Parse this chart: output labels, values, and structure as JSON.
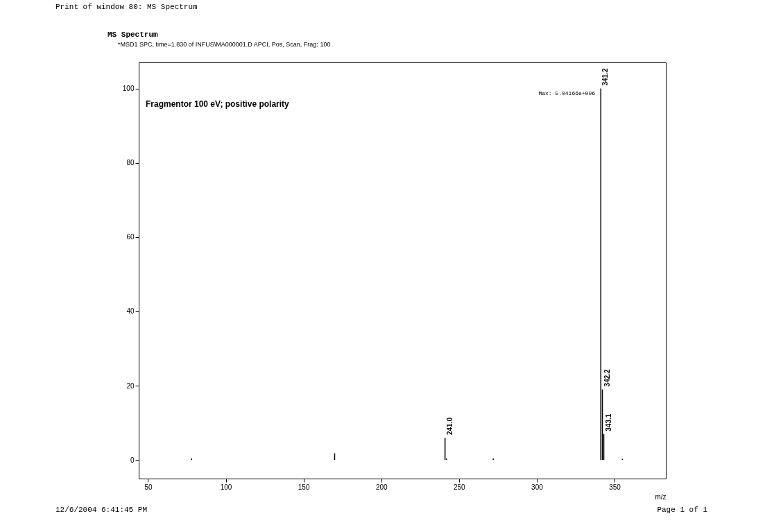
{
  "chart_data": {
    "type": "bar",
    "title": "MS Spectrum",
    "subtitle": "*MSD1 SPC, time=1.830 of INFUS\\MA000001.D   APCI, Pos, Scan, Frag: 100",
    "xlabel": "m/z",
    "x": [
      78,
      170,
      241.0,
      242,
      272,
      341.2,
      342.2,
      343.1,
      355
    ],
    "values": [
      0.4,
      1.8,
      6,
      0.4,
      0.4,
      100,
      19,
      7,
      0.3
    ],
    "color": "#000000",
    "xlim": [
      44,
      383
    ],
    "xticks": [
      50,
      100,
      150,
      200,
      250,
      300,
      350
    ],
    "ylim": [
      -5,
      107
    ],
    "yticks": [
      0,
      20,
      40,
      60,
      80,
      100
    ],
    "grid": false,
    "annotations": [
      "Print of window 80: MS Spectrum",
      "Fragmentor 100 eV; positive polarity",
      "Max: 5.04166e+006",
      "12/6/2004 6:41:45 PM",
      "Page 1 of 1",
      {
        "text": "241.0",
        "x": 241.0,
        "y": 6
      },
      {
        "text": "341.2",
        "x": 341.2,
        "y": 100
      },
      {
        "text": "342.2",
        "x": 342.2,
        "y": 19
      },
      {
        "text": "343.1",
        "x": 343.1,
        "y": 7
      }
    ]
  }
}
